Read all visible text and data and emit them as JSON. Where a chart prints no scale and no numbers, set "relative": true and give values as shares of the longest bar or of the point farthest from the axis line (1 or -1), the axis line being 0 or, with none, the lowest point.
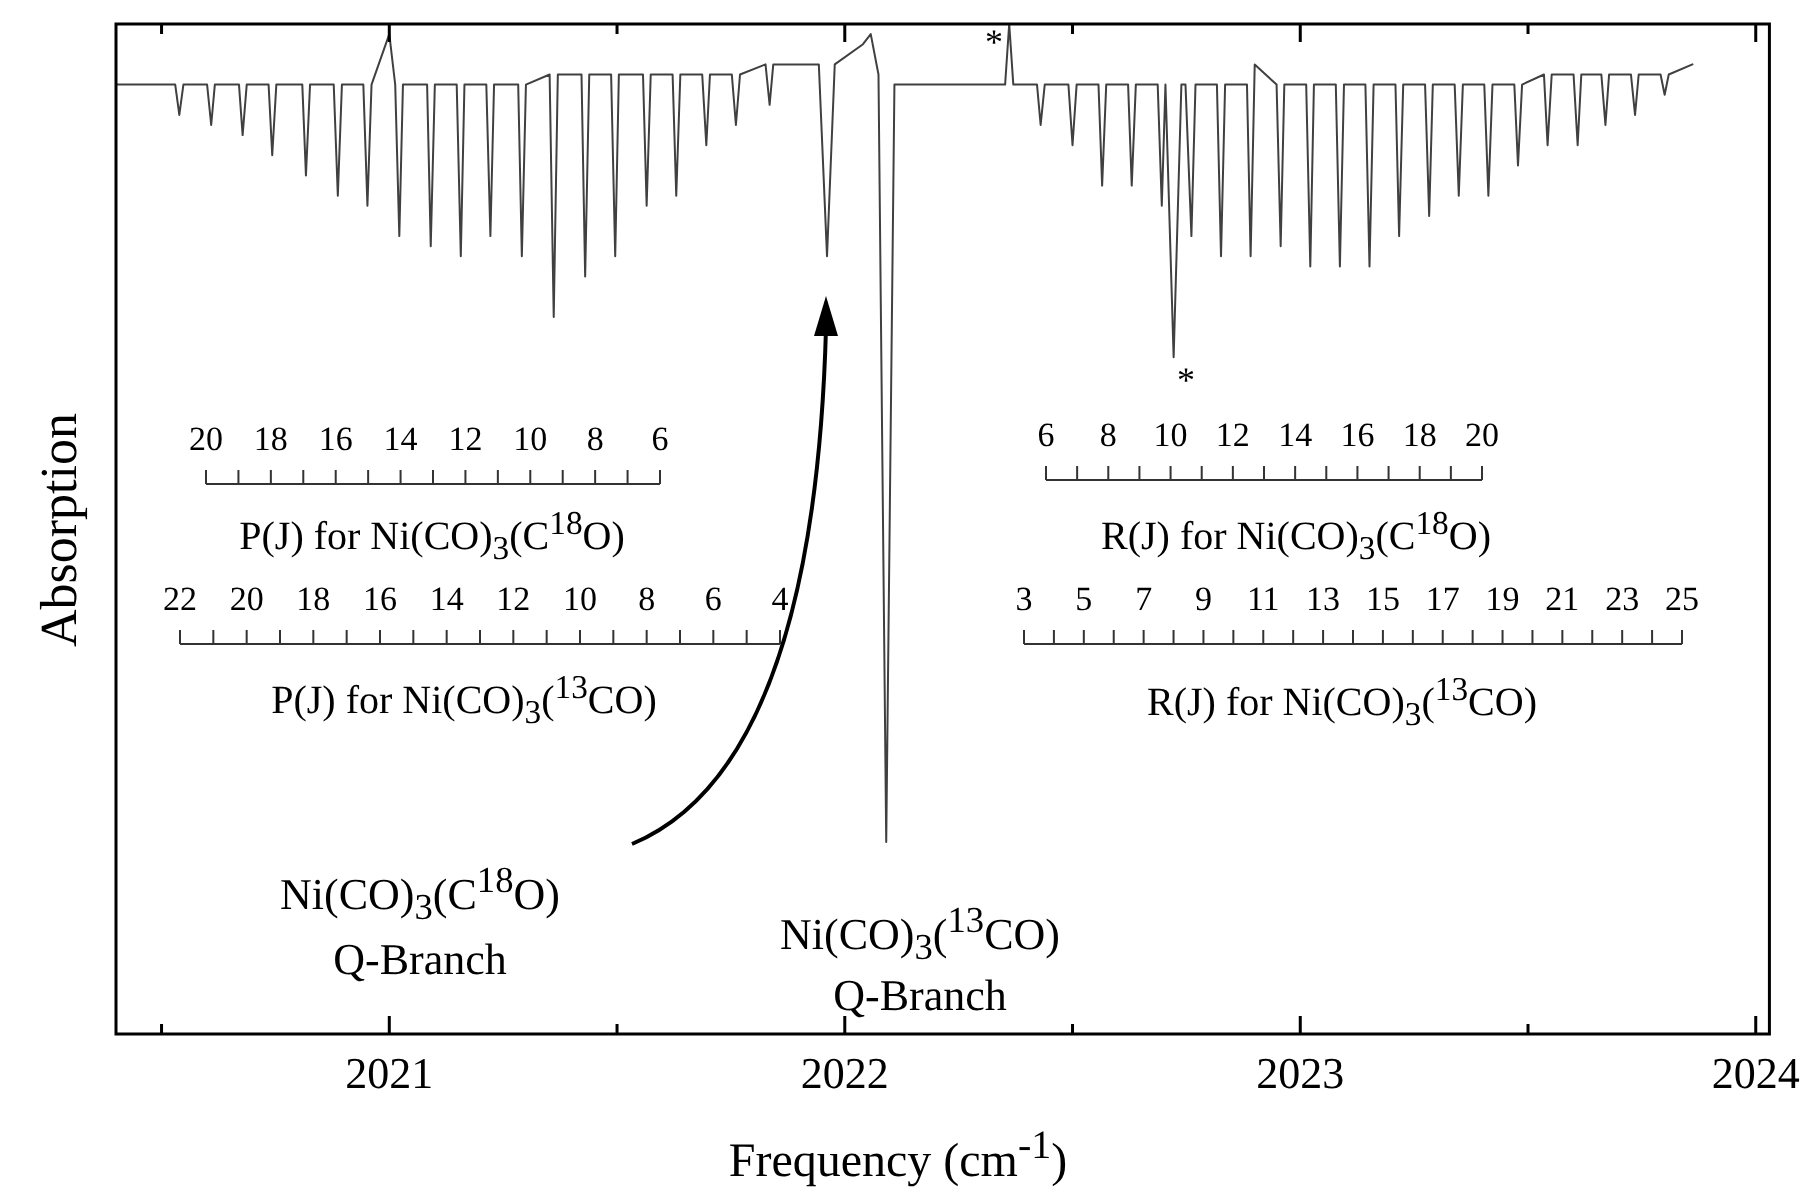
{
  "chart_data": {
    "type": "line",
    "relative": true,
    "xlabel": "Frequency (cm$^{-1}$)",
    "ylabel": "Absorption",
    "xlim": [
      2020.4,
      2024.03
    ],
    "xticks": [
      {
        "value": 2020.5,
        "label": null
      },
      2021,
      {
        "value": 2021.5,
        "label": null
      },
      2022,
      {
        "value": 2022.5,
        "label": null
      },
      2023,
      {
        "value": 2023.5,
        "label": null
      },
      2024
    ],
    "marker": "none",
    "series": [
      {
        "color": "#404040",
        "x": [
          2020.4,
          2020.53,
          2020.539,
          2020.548,
          2020.6,
          2020.609,
          2020.617,
          2020.67,
          2020.678,
          2020.687,
          2020.735,
          2020.743,
          2020.752,
          2020.809,
          2020.817,
          2020.826,
          2020.878,
          2020.887,
          2020.896,
          2020.943,
          2020.952,
          2020.961,
          2021.0,
          2021.013,
          2021.022,
          2021.03,
          2021.083,
          2021.091,
          2021.1,
          2021.148,
          2021.157,
          2021.165,
          2021.213,
          2021.222,
          2021.23,
          2021.283,
          2021.291,
          2021.3,
          2021.352,
          2021.361,
          2021.37,
          2021.422,
          2021.43,
          2021.439,
          2021.487,
          2021.496,
          2021.504,
          2021.557,
          2021.565,
          2021.574,
          2021.622,
          2021.63,
          2021.639,
          2021.687,
          2021.696,
          2021.704,
          2021.752,
          2021.761,
          2021.77,
          2021.826,
          2021.835,
          2021.843,
          2021.904,
          2021.943,
          2021.961,
          2021.978,
          2022.04,
          2022.057,
          2022.074,
          2022.091,
          2022.109,
          2022.23,
          2022.352,
          2022.361,
          2022.37,
          2022.422,
          2022.43,
          2022.439,
          2022.491,
          2022.5,
          2022.509,
          2022.557,
          2022.565,
          2022.574,
          2022.622,
          2022.63,
          2022.639,
          2022.687,
          2022.696,
          2022.704,
          2022.722,
          2022.739,
          2022.748,
          2022.761,
          2022.77,
          2022.817,
          2022.826,
          2022.835,
          2022.883,
          2022.891,
          2022.9,
          2022.948,
          2022.957,
          2022.965,
          2023.013,
          2023.022,
          2023.03,
          2023.078,
          2023.087,
          2023.096,
          2023.143,
          2023.152,
          2023.161,
          2023.209,
          2023.217,
          2023.226,
          2023.274,
          2023.283,
          2023.291,
          2023.339,
          2023.348,
          2023.357,
          2023.404,
          2023.413,
          2023.422,
          2023.47,
          2023.478,
          2023.487,
          2023.535,
          2023.543,
          2023.552,
          2023.6,
          2023.609,
          2023.617,
          2023.661,
          2023.67,
          2023.678,
          2023.726,
          2023.735,
          2023.743,
          2023.791,
          2023.8,
          2023.809,
          2023.861
        ],
        "values": [
          0.94,
          0.94,
          0.91,
          0.94,
          0.94,
          0.9,
          0.94,
          0.94,
          0.89,
          0.94,
          0.94,
          0.87,
          0.94,
          0.94,
          0.85,
          0.94,
          0.94,
          0.83,
          0.94,
          0.94,
          0.82,
          0.94,
          0.99,
          0.94,
          0.79,
          0.94,
          0.94,
          0.78,
          0.94,
          0.94,
          0.77,
          0.94,
          0.94,
          0.79,
          0.94,
          0.94,
          0.77,
          0.94,
          0.95,
          0.71,
          0.95,
          0.95,
          0.75,
          0.95,
          0.95,
          0.77,
          0.95,
          0.95,
          0.82,
          0.95,
          0.95,
          0.83,
          0.95,
          0.95,
          0.88,
          0.95,
          0.95,
          0.9,
          0.95,
          0.96,
          0.92,
          0.96,
          0.96,
          0.96,
          0.77,
          0.96,
          0.98,
          0.99,
          0.95,
          0.19,
          0.94,
          0.94,
          0.94,
          1,
          0.94,
          0.94,
          0.9,
          0.94,
          0.94,
          0.88,
          0.94,
          0.94,
          0.84,
          0.94,
          0.94,
          0.84,
          0.94,
          0.94,
          0.82,
          0.94,
          0.67,
          0.94,
          0.94,
          0.79,
          0.94,
          0.94,
          0.77,
          0.94,
          0.94,
          0.77,
          0.96,
          0.94,
          0.78,
          0.94,
          0.94,
          0.76,
          0.94,
          0.94,
          0.76,
          0.94,
          0.94,
          0.76,
          0.94,
          0.94,
          0.79,
          0.94,
          0.94,
          0.81,
          0.94,
          0.94,
          0.83,
          0.94,
          0.94,
          0.83,
          0.94,
          0.94,
          0.86,
          0.94,
          0.95,
          0.88,
          0.95,
          0.95,
          0.88,
          0.95,
          0.95,
          0.9,
          0.95,
          0.95,
          0.91,
          0.95,
          0.95,
          0.93,
          0.95,
          0.96
        ]
      }
    ],
    "annotations": [
      "*",
      "*",
      "20 18 16 14 12 10 8 6",
      "P(J) for Ni(CO)$_{3}$(C$^{18}$O)",
      "22 20 18 16 14 12 10 8 6 4",
      "P(J) for Ni(CO)$_{3}$($^{13}$CO)",
      "6 8 10 12 14 16 18 20",
      "R(J) for Ni(CO)$_{3}$(C$^{18}$O)",
      "3 5 7 9 11 13 15 17 19 21 23 25",
      "R(J) for Ni(CO)$_{3}$($^{13}$CO)",
      "Ni(CO)$_{3}$(C$^{18}$O)\nQ-Branch",
      "Ni(CO)$_{3}$($^{13}$CO)\nQ-Branch"
    ]
  }
}
